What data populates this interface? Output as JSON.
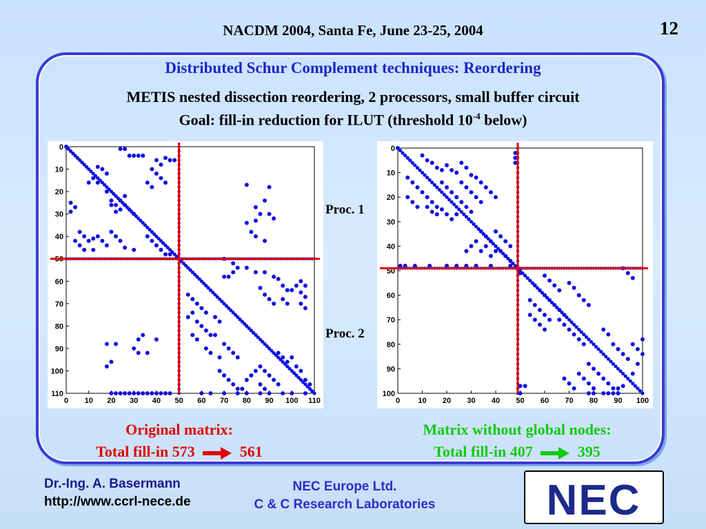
{
  "header": {
    "title": "NACDM 2004, Santa Fe, June 23-25, 2004",
    "page_number": "12"
  },
  "slide": {
    "heading": "Distributed Schur Complement techniques: Reordering",
    "line1": "METIS nested dissection reordering, 2 processors, small buffer circuit",
    "line2_pre": "Goal: fill-in reduction for ILUT (threshold 10",
    "line2_sup": "-4",
    "line2_post": " below)"
  },
  "labels": {
    "proc1": "Proc. 1",
    "proc2": "Proc. 2"
  },
  "captions": {
    "left_title": "Original matrix:",
    "left_fill_pre": "Total fill-in 573",
    "left_fill_post": "561",
    "right_title": "Matrix without global nodes:",
    "right_fill_pre": "Total fill-in 407",
    "right_fill_post": "395"
  },
  "footer": {
    "author": "Dr.-Ing. A. Basermann",
    "url": "http://www.ccrl-nece.de",
    "org": "NEC Europe Ltd.",
    "lab": "C & C Research Laboratories",
    "logo_text": "NEC"
  },
  "colors": {
    "heading_blue": "#1f25c6",
    "caption_red": "#e00000",
    "caption_green": "#11c911",
    "dot_blue": "#1010e0",
    "divider_red": "#e00000"
  },
  "chart_data": [
    {
      "type": "scatter",
      "name_hint": "original-matrix-sparsity",
      "xlim": [
        0,
        110
      ],
      "ylim": [
        0,
        110
      ],
      "x_ticks": [
        0,
        10,
        20,
        30,
        40,
        50,
        60,
        70,
        80,
        90,
        100,
        110
      ],
      "y_ticks": [
        0,
        10,
        20,
        30,
        40,
        50,
        60,
        70,
        80,
        90,
        100,
        110
      ],
      "partition": 50,
      "diagonal": [
        0,
        110
      ],
      "points": [
        [
          0,
          0
        ],
        [
          24,
          1
        ],
        [
          26,
          1
        ],
        [
          28,
          4
        ],
        [
          30,
          4
        ],
        [
          32,
          4
        ],
        [
          34,
          4
        ],
        [
          44,
          5
        ],
        [
          46,
          6
        ],
        [
          48,
          6
        ],
        [
          40,
          6
        ],
        [
          42,
          8
        ],
        [
          14,
          9
        ],
        [
          16,
          10
        ],
        [
          18,
          12
        ],
        [
          38,
          10
        ],
        [
          40,
          12
        ],
        [
          42,
          14
        ],
        [
          44,
          16
        ],
        [
          36,
          16
        ],
        [
          38,
          18
        ],
        [
          12,
          14
        ],
        [
          10,
          16
        ],
        [
          14,
          16
        ],
        [
          18,
          20
        ],
        [
          20,
          24
        ],
        [
          22,
          26
        ],
        [
          24,
          24
        ],
        [
          26,
          26
        ],
        [
          28,
          28
        ],
        [
          24,
          28
        ],
        [
          22,
          29
        ],
        [
          20,
          26
        ],
        [
          26,
          22
        ],
        [
          30,
          30
        ],
        [
          2,
          25
        ],
        [
          4,
          27
        ],
        [
          2,
          29
        ],
        [
          6,
          38
        ],
        [
          8,
          40
        ],
        [
          10,
          42
        ],
        [
          12,
          41
        ],
        [
          4,
          42
        ],
        [
          6,
          44
        ],
        [
          8,
          46
        ],
        [
          14,
          40
        ],
        [
          16,
          42
        ],
        [
          18,
          44
        ],
        [
          12,
          46
        ],
        [
          20,
          38
        ],
        [
          22,
          40
        ],
        [
          24,
          42
        ],
        [
          26,
          45
        ],
        [
          30,
          46
        ],
        [
          36,
          40
        ],
        [
          38,
          42
        ],
        [
          40,
          44
        ],
        [
          42,
          46
        ],
        [
          44,
          48
        ],
        [
          46,
          48
        ],
        [
          80,
          17
        ],
        [
          90,
          18
        ],
        [
          88,
          24
        ],
        [
          84,
          27
        ],
        [
          86,
          30
        ],
        [
          90,
          30
        ],
        [
          92,
          32
        ],
        [
          84,
          33
        ],
        [
          80,
          34
        ],
        [
          82,
          38
        ],
        [
          84,
          40
        ],
        [
          88,
          42
        ],
        [
          70,
          50
        ],
        [
          74,
          52
        ],
        [
          76,
          54
        ],
        [
          80,
          54
        ],
        [
          84,
          56
        ],
        [
          88,
          56
        ],
        [
          92,
          58
        ],
        [
          94,
          59
        ],
        [
          96,
          62
        ],
        [
          98,
          64
        ],
        [
          100,
          64
        ],
        [
          102,
          62
        ],
        [
          104,
          60
        ],
        [
          106,
          62
        ],
        [
          70,
          58
        ],
        [
          72,
          58
        ],
        [
          74,
          56
        ],
        [
          86,
          63
        ],
        [
          88,
          66
        ],
        [
          90,
          68
        ],
        [
          92,
          70
        ],
        [
          96,
          68
        ],
        [
          98,
          70
        ],
        [
          104,
          65
        ],
        [
          106,
          67
        ],
        [
          104,
          70
        ],
        [
          106,
          72
        ],
        [
          54,
          66
        ],
        [
          56,
          68
        ],
        [
          58,
          70
        ],
        [
          60,
          72
        ],
        [
          62,
          74
        ],
        [
          56,
          74
        ],
        [
          54,
          76
        ],
        [
          58,
          78
        ],
        [
          60,
          80
        ],
        [
          62,
          82
        ],
        [
          64,
          84
        ],
        [
          56,
          84
        ],
        [
          58,
          86
        ],
        [
          66,
          76
        ],
        [
          68,
          78
        ],
        [
          66,
          84
        ],
        [
          70,
          88
        ],
        [
          72,
          90
        ],
        [
          74,
          92
        ],
        [
          76,
          94
        ],
        [
          68,
          94
        ],
        [
          62,
          90
        ],
        [
          64,
          92
        ],
        [
          68,
          100
        ],
        [
          70,
          102
        ],
        [
          72,
          104
        ],
        [
          74,
          106
        ],
        [
          76,
          108
        ],
        [
          78,
          108
        ],
        [
          80,
          104
        ],
        [
          82,
          102
        ],
        [
          84,
          100
        ],
        [
          86,
          98
        ],
        [
          88,
          100
        ],
        [
          90,
          102
        ],
        [
          92,
          104
        ],
        [
          94,
          106
        ],
        [
          86,
          106
        ],
        [
          88,
          108
        ],
        [
          94,
          92
        ],
        [
          96,
          94
        ],
        [
          98,
          96
        ],
        [
          100,
          94
        ],
        [
          102,
          98
        ],
        [
          104,
          100
        ],
        [
          106,
          104
        ],
        [
          108,
          106
        ],
        [
          18,
          88
        ],
        [
          22,
          88
        ],
        [
          18,
          98
        ],
        [
          20,
          96
        ],
        [
          32,
          86
        ],
        [
          34,
          84
        ],
        [
          30,
          90
        ],
        [
          32,
          92
        ],
        [
          36,
          92
        ],
        [
          40,
          86
        ],
        [
          20,
          110
        ],
        [
          22,
          110
        ],
        [
          24,
          110
        ],
        [
          26,
          110
        ],
        [
          28,
          110
        ],
        [
          30,
          110
        ],
        [
          32,
          110
        ],
        [
          34,
          110
        ],
        [
          36,
          110
        ],
        [
          38,
          110
        ],
        [
          40,
          110
        ],
        [
          42,
          110
        ],
        [
          44,
          110
        ],
        [
          46,
          110
        ],
        [
          60,
          110
        ],
        [
          64,
          110
        ],
        [
          70,
          110
        ],
        [
          76,
          110
        ],
        [
          80,
          110
        ],
        [
          86,
          110
        ],
        [
          90,
          110
        ],
        [
          96,
          110
        ],
        [
          100,
          110
        ],
        [
          106,
          110
        ]
      ],
      "bands": [
        {
          "x0": 0,
          "x1": 50,
          "y": 50
        },
        {
          "x0": 50,
          "x1": 110,
          "y": 50
        },
        {
          "x": 50,
          "y0": 0,
          "y1": 110
        }
      ]
    },
    {
      "type": "scatter",
      "name_hint": "matrix-without-global-nodes-sparsity",
      "xlim": [
        0,
        100
      ],
      "ylim": [
        0,
        100
      ],
      "x_ticks": [
        0,
        10,
        20,
        30,
        40,
        50,
        60,
        70,
        80,
        90,
        100
      ],
      "y_ticks": [
        0,
        10,
        20,
        30,
        40,
        50,
        60,
        70,
        80,
        90,
        100
      ],
      "partition": 49,
      "diagonal": [
        0,
        100
      ],
      "points": [
        [
          0,
          0
        ],
        [
          10,
          3
        ],
        [
          12,
          5
        ],
        [
          14,
          6
        ],
        [
          16,
          8
        ],
        [
          18,
          9
        ],
        [
          20,
          7
        ],
        [
          22,
          9
        ],
        [
          24,
          10
        ],
        [
          26,
          6
        ],
        [
          28,
          8
        ],
        [
          30,
          11
        ],
        [
          32,
          12
        ],
        [
          34,
          14
        ],
        [
          36,
          16
        ],
        [
          38,
          18
        ],
        [
          40,
          20
        ],
        [
          26,
          14
        ],
        [
          28,
          16
        ],
        [
          30,
          18
        ],
        [
          32,
          20
        ],
        [
          34,
          22
        ],
        [
          18,
          14
        ],
        [
          20,
          16
        ],
        [
          22,
          18
        ],
        [
          24,
          20
        ],
        [
          26,
          22
        ],
        [
          28,
          24
        ],
        [
          30,
          26
        ],
        [
          4,
          12
        ],
        [
          6,
          14
        ],
        [
          8,
          16
        ],
        [
          10,
          18
        ],
        [
          12,
          20
        ],
        [
          14,
          22
        ],
        [
          16,
          24
        ],
        [
          4,
          20
        ],
        [
          6,
          22
        ],
        [
          8,
          24
        ],
        [
          12,
          24
        ],
        [
          14,
          26
        ],
        [
          16,
          27
        ],
        [
          18,
          25
        ],
        [
          20,
          27
        ],
        [
          22,
          29
        ],
        [
          24,
          27
        ],
        [
          34,
          34
        ],
        [
          36,
          36
        ],
        [
          38,
          38
        ],
        [
          40,
          34
        ],
        [
          42,
          36
        ],
        [
          44,
          38
        ],
        [
          46,
          40
        ],
        [
          38,
          44
        ],
        [
          40,
          42
        ],
        [
          36,
          40
        ],
        [
          34,
          42
        ],
        [
          32,
          38
        ],
        [
          30,
          40
        ],
        [
          28,
          42
        ],
        [
          42,
          42
        ],
        [
          44,
          44
        ],
        [
          46,
          46
        ],
        [
          1,
          48
        ],
        [
          3,
          48
        ],
        [
          7,
          48
        ],
        [
          13,
          48
        ],
        [
          20,
          48
        ],
        [
          24,
          48
        ],
        [
          28,
          48
        ],
        [
          32,
          48
        ],
        [
          38,
          48
        ],
        [
          46,
          48
        ],
        [
          48,
          2
        ],
        [
          48,
          4
        ],
        [
          48,
          6
        ],
        [
          92,
          49
        ],
        [
          94,
          51
        ],
        [
          96,
          53
        ],
        [
          50,
          51
        ],
        [
          60,
          52
        ],
        [
          62,
          54
        ],
        [
          64,
          56
        ],
        [
          66,
          58
        ],
        [
          70,
          55
        ],
        [
          72,
          57
        ],
        [
          74,
          60
        ],
        [
          76,
          62
        ],
        [
          78,
          64
        ],
        [
          56,
          56
        ],
        [
          58,
          58
        ],
        [
          60,
          60
        ],
        [
          62,
          62
        ],
        [
          64,
          64
        ],
        [
          66,
          66
        ],
        [
          68,
          68
        ],
        [
          54,
          62
        ],
        [
          56,
          64
        ],
        [
          58,
          66
        ],
        [
          60,
          68
        ],
        [
          62,
          70
        ],
        [
          54,
          68
        ],
        [
          56,
          70
        ],
        [
          58,
          72
        ],
        [
          60,
          74
        ],
        [
          66,
          70
        ],
        [
          68,
          72
        ],
        [
          70,
          74
        ],
        [
          72,
          76
        ],
        [
          74,
          78
        ],
        [
          76,
          80
        ],
        [
          84,
          74
        ],
        [
          86,
          76
        ],
        [
          88,
          80
        ],
        [
          90,
          82
        ],
        [
          92,
          84
        ],
        [
          94,
          86
        ],
        [
          96,
          80
        ],
        [
          98,
          82
        ],
        [
          100,
          78
        ],
        [
          100,
          84
        ],
        [
          98,
          88
        ],
        [
          96,
          92
        ],
        [
          78,
          88
        ],
        [
          80,
          90
        ],
        [
          82,
          92
        ],
        [
          84,
          94
        ],
        [
          86,
          96
        ],
        [
          88,
          98
        ],
        [
          90,
          98
        ],
        [
          92,
          97
        ],
        [
          74,
          92
        ],
        [
          76,
          94
        ],
        [
          78,
          96
        ],
        [
          80,
          98
        ],
        [
          72,
          98
        ],
        [
          70,
          96
        ],
        [
          68,
          94
        ],
        [
          50,
          97
        ],
        [
          52,
          97
        ],
        [
          50,
          100
        ],
        [
          78,
          100
        ],
        [
          80,
          100
        ],
        [
          84,
          100
        ],
        [
          86,
          100
        ],
        [
          88,
          100
        ],
        [
          90,
          100
        ]
      ],
      "bands": [
        {
          "x0": 0,
          "x1": 49,
          "y": 49
        },
        {
          "x0": 49,
          "x1": 100,
          "y": 49
        },
        {
          "x": 49,
          "y0": 0,
          "y1": 100
        }
      ]
    }
  ]
}
